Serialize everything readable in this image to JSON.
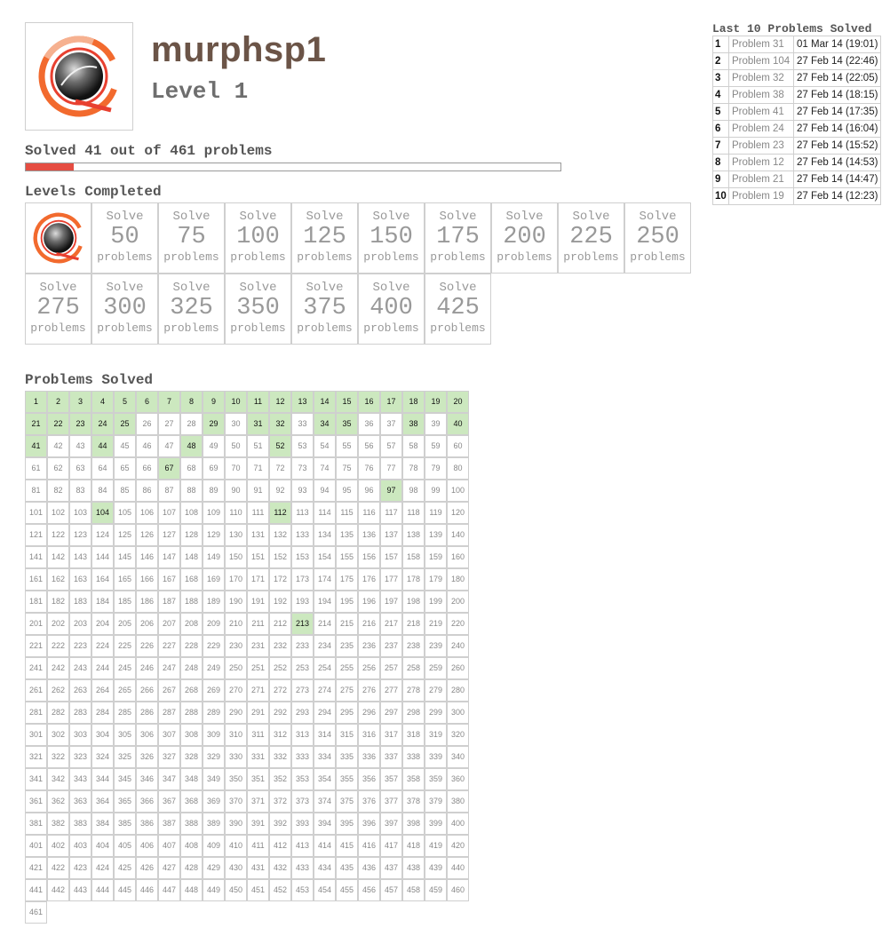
{
  "profile": {
    "username": "murphsp1",
    "level": "Level 1",
    "avatar_icon": "level-1-ring-icon",
    "colors": {
      "username": "#6b5447",
      "ring": "#f26a2e",
      "ring_inner": "#e84030"
    }
  },
  "progress": {
    "summary": "Solved 41 out of 461 problems",
    "solved": 41,
    "total": 461,
    "fill_color": "#e54d42"
  },
  "levels": {
    "title": "Levels Completed",
    "completed_icon": "level-1-ring-icon",
    "pending": [
      {
        "solve": "Solve",
        "count": "50",
        "unit": "problems"
      },
      {
        "solve": "Solve",
        "count": "75",
        "unit": "problems"
      },
      {
        "solve": "Solve",
        "count": "100",
        "unit": "problems"
      },
      {
        "solve": "Solve",
        "count": "125",
        "unit": "problems"
      },
      {
        "solve": "Solve",
        "count": "150",
        "unit": "problems"
      },
      {
        "solve": "Solve",
        "count": "175",
        "unit": "problems"
      },
      {
        "solve": "Solve",
        "count": "200",
        "unit": "problems"
      },
      {
        "solve": "Solve",
        "count": "225",
        "unit": "problems"
      },
      {
        "solve": "Solve",
        "count": "250",
        "unit": "problems"
      },
      {
        "solve": "Solve",
        "count": "275",
        "unit": "problems"
      },
      {
        "solve": "Solve",
        "count": "300",
        "unit": "problems"
      },
      {
        "solve": "Solve",
        "count": "325",
        "unit": "problems"
      },
      {
        "solve": "Solve",
        "count": "350",
        "unit": "problems"
      },
      {
        "solve": "Solve",
        "count": "375",
        "unit": "problems"
      },
      {
        "solve": "Solve",
        "count": "400",
        "unit": "problems"
      },
      {
        "solve": "Solve",
        "count": "425",
        "unit": "problems"
      }
    ]
  },
  "problems": {
    "title": "Problems Solved",
    "total": 461,
    "solved": [
      1,
      2,
      3,
      4,
      5,
      6,
      7,
      8,
      9,
      10,
      11,
      12,
      13,
      14,
      15,
      16,
      17,
      18,
      19,
      20,
      21,
      22,
      23,
      24,
      25,
      29,
      31,
      32,
      34,
      35,
      38,
      40,
      41,
      44,
      48,
      52,
      67,
      97,
      104,
      112,
      213
    ],
    "colors": {
      "solved_bg": "#cce8bf",
      "unsolved_text": "#888888"
    }
  },
  "recent": {
    "title": "Last 10 Problems Solved",
    "rows": [
      {
        "rank": "1",
        "problem": "Problem 31",
        "date": "01 Mar 14 (19:01)"
      },
      {
        "rank": "2",
        "problem": "Problem 104",
        "date": "27 Feb 14 (22:46)"
      },
      {
        "rank": "3",
        "problem": "Problem 32",
        "date": "27 Feb 14 (22:05)"
      },
      {
        "rank": "4",
        "problem": "Problem 38",
        "date": "27 Feb 14 (18:15)"
      },
      {
        "rank": "5",
        "problem": "Problem 41",
        "date": "27 Feb 14 (17:35)"
      },
      {
        "rank": "6",
        "problem": "Problem 24",
        "date": "27 Feb 14 (16:04)"
      },
      {
        "rank": "7",
        "problem": "Problem 23",
        "date": "27 Feb 14 (15:52)"
      },
      {
        "rank": "8",
        "problem": "Problem 12",
        "date": "27 Feb 14 (14:53)"
      },
      {
        "rank": "9",
        "problem": "Problem 21",
        "date": "27 Feb 14 (14:47)"
      },
      {
        "rank": "10",
        "problem": "Problem 19",
        "date": "27 Feb 14 (12:23)"
      }
    ]
  }
}
